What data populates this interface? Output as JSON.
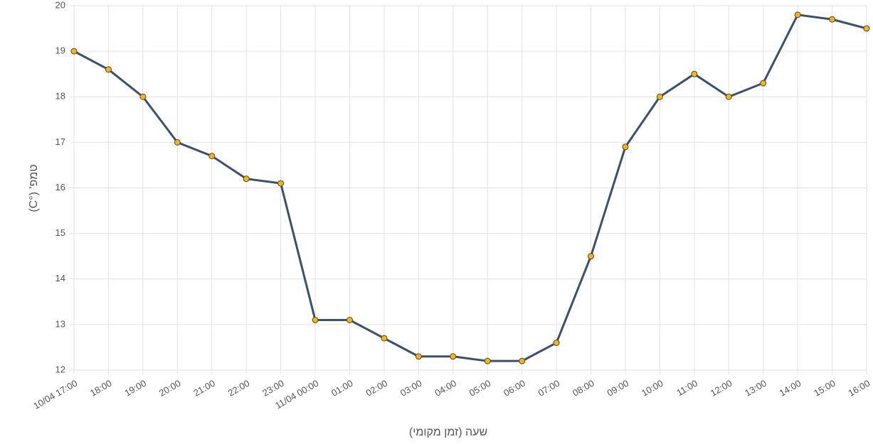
{
  "chart_data": {
    "type": "line",
    "x_label": "שעה (זמן מקומי)",
    "y_label": "טמפ' (°C)",
    "categories": [
      "10/04 17:00",
      "18:00",
      "19:00",
      "20:00",
      "21:00",
      "22:00",
      "23:00",
      "11/04 00:00",
      "01:00",
      "02:00",
      "03:00",
      "04:00",
      "05:00",
      "06:00",
      "07:00",
      "08:00",
      "09:00",
      "10:00",
      "11:00",
      "12:00",
      "13:00",
      "14:00",
      "15:00",
      "16:00"
    ],
    "series": [
      {
        "color": "#3a5070",
        "marker_color": "#f2b418",
        "values": [
          19,
          18.6,
          18,
          17,
          16.7,
          16.2,
          16.1,
          13.1,
          13.1,
          12.7,
          12.3,
          12.3,
          12.2,
          12.2,
          12.6,
          14.5,
          16.9,
          18,
          18.5,
          18,
          18.3,
          19.8,
          19.7,
          19.5
        ]
      }
    ],
    "ylim": [
      12,
      20
    ],
    "yticks": [
      12,
      13,
      14,
      15,
      16,
      17,
      18,
      19,
      20
    ],
    "grid": true
  }
}
